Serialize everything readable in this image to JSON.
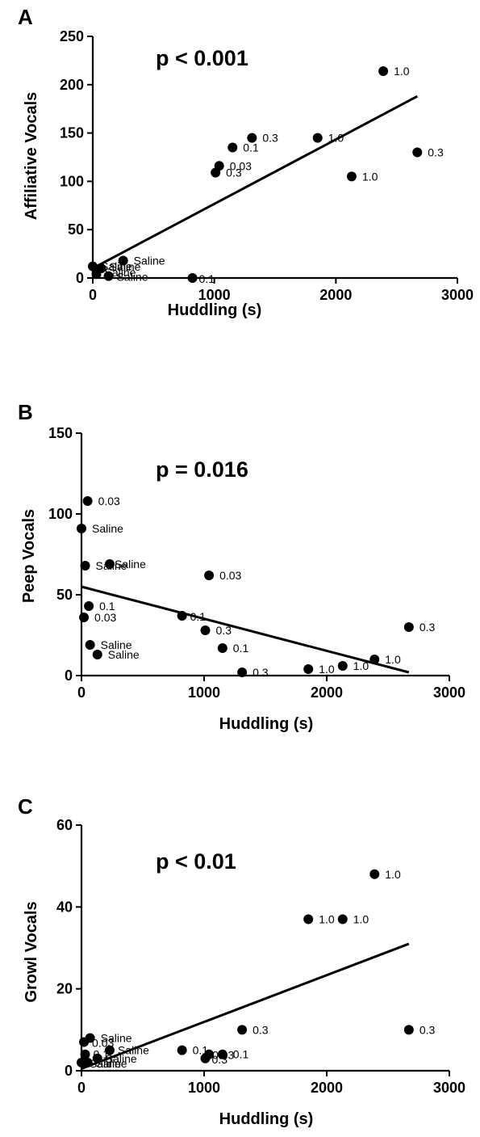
{
  "chart_data": [
    {
      "type": "scatter",
      "panel": "A",
      "annotation": "p < 0.001",
      "xlabel": "Huddling (s)",
      "ylabel": "Affiliative Vocals",
      "xlim": [
        0,
        3000
      ],
      "ylim": [
        0,
        250
      ],
      "xticks": [
        0,
        1000,
        2000,
        3000
      ],
      "yticks": [
        0,
        50,
        100,
        150,
        200,
        250
      ],
      "points": [
        {
          "x": 2390,
          "y": 214,
          "label": "1.0"
        },
        {
          "x": 1850,
          "y": 145,
          "label": "1.0"
        },
        {
          "x": 2130,
          "y": 105,
          "label": "1.0"
        },
        {
          "x": 2670,
          "y": 130,
          "label": "0.3"
        },
        {
          "x": 1310,
          "y": 145,
          "label": "0.3"
        },
        {
          "x": 1010,
          "y": 109,
          "label": "0.3"
        },
        {
          "x": 1150,
          "y": 135,
          "label": "0.1"
        },
        {
          "x": 1040,
          "y": 116,
          "label": "0.03"
        },
        {
          "x": 820,
          "y": 0,
          "label": "0.1"
        },
        {
          "x": 250,
          "y": 18,
          "label": "Saline"
        },
        {
          "x": 0,
          "y": 12,
          "label": "Saline"
        },
        {
          "x": 30,
          "y": 4,
          "label": "Saline"
        },
        {
          "x": 70,
          "y": 10,
          "label": "Saline"
        },
        {
          "x": 130,
          "y": 2,
          "label": "Saline"
        }
      ],
      "fit": [
        {
          "x": 0,
          "y": 10
        },
        {
          "x": 2670,
          "y": 188
        }
      ]
    },
    {
      "type": "scatter",
      "panel": "B",
      "annotation": "p = 0.016",
      "xlabel": "Huddling (s)",
      "ylabel": "Peep Vocals",
      "xlim": [
        0,
        3000
      ],
      "ylim": [
        0,
        150
      ],
      "xticks": [
        0,
        1000,
        2000,
        3000
      ],
      "yticks": [
        0,
        50,
        100,
        150
      ],
      "points": [
        {
          "x": 50,
          "y": 108,
          "label": "0.03"
        },
        {
          "x": 0,
          "y": 91,
          "label": "Saline"
        },
        {
          "x": 30,
          "y": 68,
          "label": "Saline"
        },
        {
          "x": 230,
          "y": 69,
          "label": "Saline"
        },
        {
          "x": 60,
          "y": 43,
          "label": "0.1"
        },
        {
          "x": 20,
          "y": 36,
          "label": "0.03"
        },
        {
          "x": 70,
          "y": 19,
          "label": "Saline"
        },
        {
          "x": 130,
          "y": 13,
          "label": "Saline"
        },
        {
          "x": 820,
          "y": 37,
          "label": "0.1"
        },
        {
          "x": 1010,
          "y": 28,
          "label": "0.3"
        },
        {
          "x": 1040,
          "y": 62,
          "label": "0.03"
        },
        {
          "x": 1150,
          "y": 17,
          "label": "0.1"
        },
        {
          "x": 1310,
          "y": 2,
          "label": "0.3"
        },
        {
          "x": 1850,
          "y": 4,
          "label": "1.0"
        },
        {
          "x": 2130,
          "y": 6,
          "label": "1.0"
        },
        {
          "x": 2390,
          "y": 10,
          "label": "1.0"
        },
        {
          "x": 2670,
          "y": 30,
          "label": "0.3"
        }
      ],
      "fit": [
        {
          "x": 0,
          "y": 55
        },
        {
          "x": 2670,
          "y": 2
        }
      ]
    },
    {
      "type": "scatter",
      "panel": "C",
      "annotation": "p < 0.01",
      "xlabel": "Huddling (s)",
      "ylabel": "Growl Vocals",
      "xlim": [
        0,
        3000
      ],
      "ylim": [
        0,
        60
      ],
      "xticks": [
        0,
        1000,
        2000,
        3000
      ],
      "yticks": [
        0,
        20,
        40,
        60
      ],
      "points": [
        {
          "x": 2390,
          "y": 48,
          "label": "1.0"
        },
        {
          "x": 1850,
          "y": 37,
          "label": "1.0"
        },
        {
          "x": 2130,
          "y": 37,
          "label": "1.0"
        },
        {
          "x": 2670,
          "y": 10,
          "label": "0.3"
        },
        {
          "x": 1310,
          "y": 10,
          "label": "0.3"
        },
        {
          "x": 820,
          "y": 5,
          "label": "0.1"
        },
        {
          "x": 1010,
          "y": 3,
          "label": "0.3"
        },
        {
          "x": 1040,
          "y": 4,
          "label": "0.03"
        },
        {
          "x": 1150,
          "y": 4,
          "label": "0.1"
        },
        {
          "x": 70,
          "y": 8,
          "label": "Saline"
        },
        {
          "x": 20,
          "y": 7,
          "label": "0.03"
        },
        {
          "x": 230,
          "y": 5,
          "label": "Saline"
        },
        {
          "x": 30,
          "y": 4,
          "label": "0.1"
        },
        {
          "x": 130,
          "y": 3,
          "label": "Saline"
        },
        {
          "x": 0,
          "y": 2,
          "label": "Saline"
        },
        {
          "x": 50,
          "y": 2,
          "label": "Saline"
        }
      ],
      "fit": [
        {
          "x": 0,
          "y": 0.5
        },
        {
          "x": 2670,
          "y": 31
        }
      ]
    }
  ]
}
